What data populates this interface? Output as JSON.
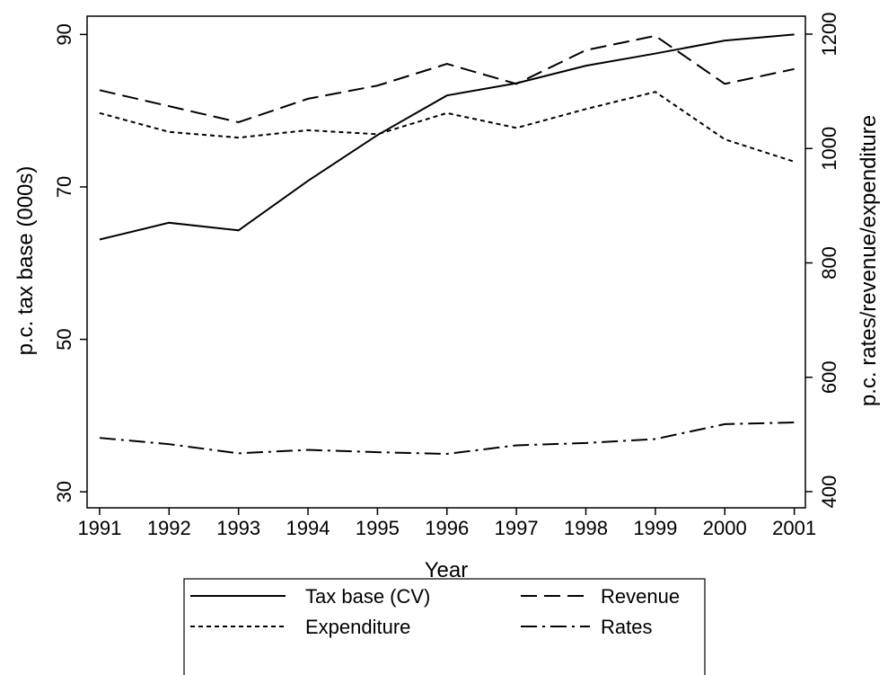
{
  "chart_data": {
    "type": "line",
    "x_label": "Year",
    "y_label": "p.c. tax base (000s)",
    "y2_label": "p.c. rates/revenue/expenditure",
    "x": [
      1991,
      1992,
      1993,
      1994,
      1995,
      1996,
      1997,
      1998,
      1999,
      2000,
      2001
    ],
    "xlim": [
      1990.82,
      2001.16
    ],
    "ylim": [
      27.9,
      92.4
    ],
    "yticks": [
      30,
      50,
      70,
      90
    ],
    "y2lim": [
      371.7,
      1231.4
    ],
    "y2ticks": [
      400,
      600,
      800,
      1000,
      1200
    ],
    "grid": false,
    "legend": "bottom",
    "series": [
      {
        "name": "Tax base (CV)",
        "color": "#000000",
        "style": "solid",
        "axis": "y",
        "values": [
          63.1,
          65.3,
          64.3,
          70.8,
          76.8,
          82.0,
          83.6,
          85.9,
          87.5,
          89.2,
          90.0
        ]
      },
      {
        "name": "Revenue",
        "color": "#000000",
        "style": "dash",
        "axis": "y2",
        "values": [
          1102,
          1074,
          1046,
          1087,
          1110,
          1148,
          1113,
          1172,
          1197,
          1113,
          1139
        ]
      },
      {
        "name": "Expenditure",
        "color": "#000000",
        "style": "dot",
        "axis": "y2",
        "values": [
          1062,
          1029,
          1019,
          1032,
          1025,
          1062,
          1036,
          1069,
          1099,
          1016,
          977
        ]
      },
      {
        "name": "Rates",
        "color": "#000000",
        "style": "dashdot",
        "axis": "y2",
        "values": [
          494,
          483,
          467,
          473,
          469,
          466,
          481,
          485,
          492,
          518,
          521
        ]
      }
    ]
  }
}
